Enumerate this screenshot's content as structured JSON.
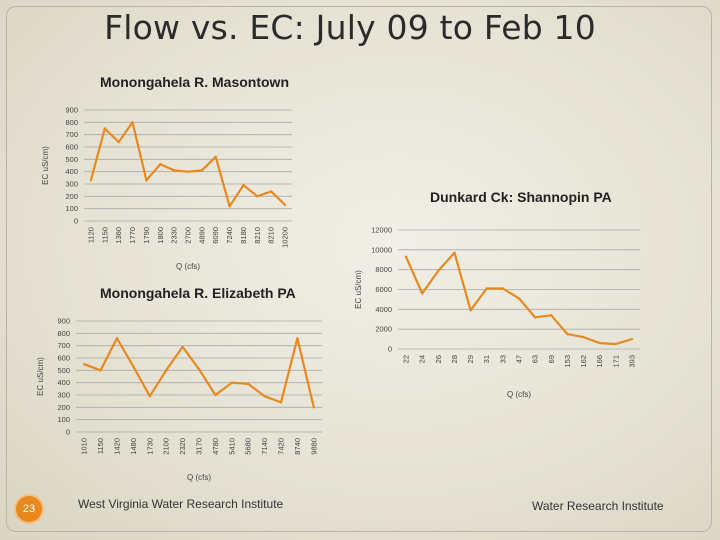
{
  "slide": {
    "title": "Flow vs. EC:  July 09 to Feb 10",
    "page_number": "23",
    "footer_left": "West Virginia Water Research Institute",
    "footer_right": "Water Research Institute"
  },
  "colors": {
    "line": "#e8891f",
    "grid": "#a9a9a9",
    "text": "#333333",
    "badge": "#e8891f"
  },
  "chart_data": [
    {
      "id": "masontown",
      "type": "line",
      "title": "Monongahela R. Masontown",
      "xlabel": "Q (cfs)",
      "ylabel": "EC uS/cm)",
      "categories": [
        "1120",
        "1150",
        "1360",
        "1770",
        "1790",
        "1800",
        "2330",
        "2700",
        "4890",
        "6090",
        "7240",
        "8180",
        "8210",
        "8210",
        "10200"
      ],
      "values": [
        330,
        750,
        640,
        800,
        330,
        460,
        410,
        400,
        410,
        520,
        120,
        290,
        200,
        240,
        130
      ],
      "ylim": [
        0,
        900
      ],
      "yticks": [
        0,
        100,
        200,
        300,
        400,
        500,
        600,
        700,
        800,
        900
      ],
      "grid": true
    },
    {
      "id": "elizabeth",
      "type": "line",
      "title": "Monongahela R.  Elizabeth PA",
      "xlabel": "Q (cfs)",
      "ylabel": "EC uS/cm)",
      "categories": [
        "1010",
        "1150",
        "1420",
        "1480",
        "1730",
        "2100",
        "2320",
        "3170",
        "4780",
        "5410",
        "5680",
        "7140",
        "7420",
        "8740",
        "9880"
      ],
      "values": [
        550,
        500,
        760,
        530,
        290,
        500,
        690,
        510,
        300,
        400,
        390,
        290,
        240,
        760,
        200
      ],
      "ylim": [
        0,
        900
      ],
      "yticks": [
        0,
        100,
        200,
        300,
        400,
        500,
        600,
        700,
        800,
        900
      ],
      "grid": true
    },
    {
      "id": "dunkard",
      "type": "line",
      "title": "Dunkard Ck:  Shannopin PA",
      "xlabel": "Q (cfs)",
      "ylabel": "EC uS/cm)",
      "categories": [
        "22",
        "24",
        "26",
        "28",
        "29",
        "31",
        "33",
        "47",
        "63",
        "69",
        "153",
        "162",
        "166",
        "171",
        "393"
      ],
      "values": [
        9300,
        5600,
        7900,
        9700,
        3900,
        6100,
        6100,
        5100,
        3200,
        3400,
        1500,
        1200,
        600,
        500,
        1000
      ],
      "ylim": [
        0,
        12000
      ],
      "yticks": [
        0,
        2000,
        4000,
        6000,
        8000,
        10000,
        12000
      ],
      "grid": true
    }
  ]
}
